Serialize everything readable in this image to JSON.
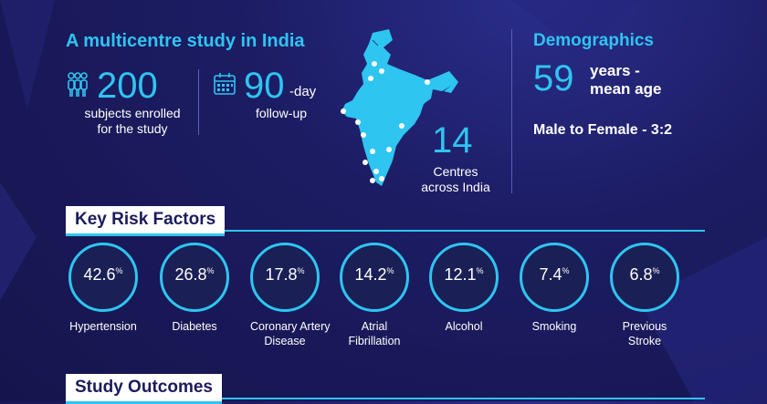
{
  "header": {
    "title": "A multicentre study in India"
  },
  "subjects": {
    "value": "200",
    "label_line1": "subjects enrolled",
    "label_line2": "for the study"
  },
  "followup": {
    "value": "90",
    "suffix": "-day",
    "label": "follow-up"
  },
  "centres": {
    "value": "14",
    "label_line1": "Centres",
    "label_line2": "across India"
  },
  "demographics": {
    "title": "Demographics",
    "age_value": "59",
    "age_line1": "years -",
    "age_line2": "mean age",
    "ratio": "Male to Female - 3:2"
  },
  "risk": {
    "title": "Key Risk Factors",
    "items": [
      {
        "value": "42.6",
        "unit": "%",
        "line1": "Hypertension",
        "line2": ""
      },
      {
        "value": "26.8",
        "unit": "%",
        "line1": "Diabetes",
        "line2": ""
      },
      {
        "value": "17.8",
        "unit": "%",
        "line1": "Coronary Artery",
        "line2": "Disease"
      },
      {
        "value": "14.2",
        "unit": "%",
        "line1": "Atrial",
        "line2": "Fibrillation"
      },
      {
        "value": "12.1",
        "unit": "%",
        "line1": "Alcohol",
        "line2": ""
      },
      {
        "value": "7.4",
        "unit": "%",
        "line1": "Smoking",
        "line2": ""
      },
      {
        "value": "6.8",
        "unit": "%",
        "line1": "Previous",
        "line2": "Stroke"
      }
    ]
  },
  "outcomes": {
    "title": "Study Outcomes"
  },
  "colors": {
    "accent": "#2ec5f0",
    "background": "#1c1c63"
  }
}
